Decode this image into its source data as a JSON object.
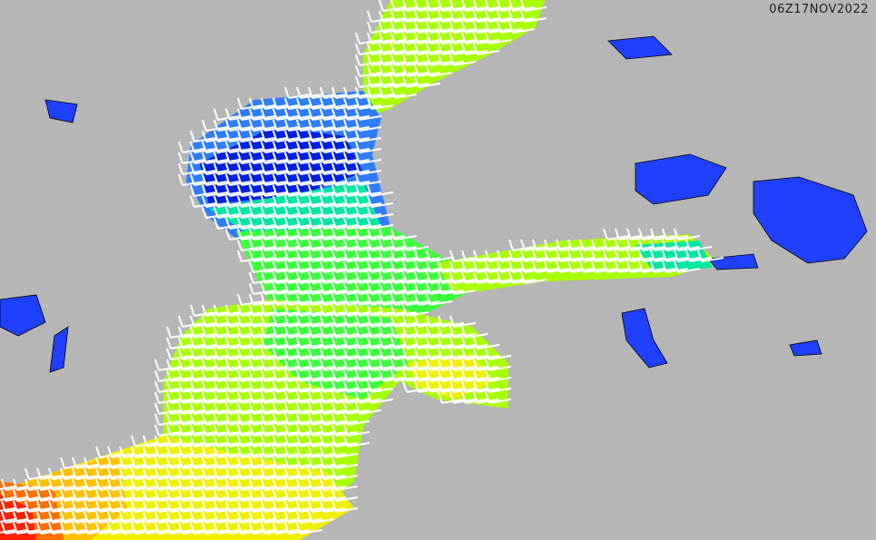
{
  "map": {
    "timestamp": "06Z17NOV2022",
    "colors": {
      "land": "#b6b6b6",
      "lakes": "#2040ff",
      "barbs": "#ffffff",
      "speed_scale": [
        "#0020e0",
        "#2f7cff",
        "#00e8a0",
        "#3cff3c",
        "#a8ff00",
        "#f0f000",
        "#ffc000",
        "#ff7000",
        "#ff2000"
      ]
    },
    "layers": [
      "wind-speed-fill",
      "wind-barbs",
      "lakes",
      "coastlines",
      "borders"
    ]
  }
}
